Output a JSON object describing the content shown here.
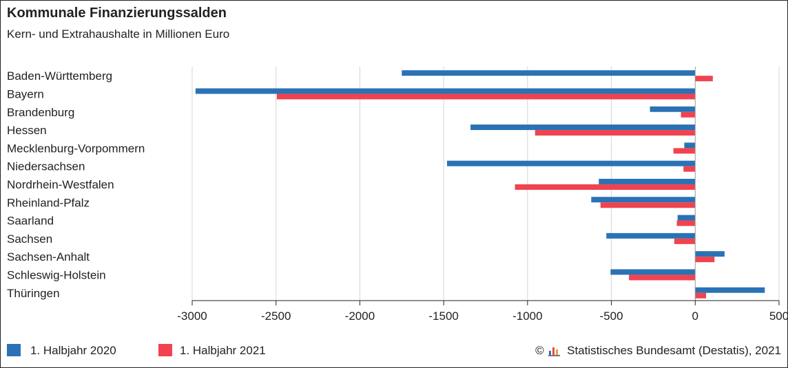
{
  "header": {
    "title": "Kommunale Finanzierungssalden",
    "subtitle": "Kern- und Extrahaushalte in Millionen Euro"
  },
  "legend": {
    "items": [
      {
        "label": "1. Halbjahr 2020",
        "color": "#2a72b5"
      },
      {
        "label": "1. Halbjahr 2021",
        "color": "#f0434f"
      }
    ]
  },
  "source": {
    "copyright": "©",
    "text": "Statistisches Bundesamt (Destatis), 2021",
    "logo_icon": "destatis-logo-icon"
  },
  "chart_data": {
    "type": "bar",
    "orientation": "horizontal",
    "title": "Kommunale Finanzierungssalden",
    "subtitle": "Kern- und Extrahaushalte in Millionen Euro",
    "categories": [
      "Baden-Württemberg",
      "Bayern",
      "Brandenburg",
      "Hessen",
      "Mecklenburg-Vorpommern",
      "Niedersachsen",
      "Nordrhein-Westfalen",
      "Rheinland-Pfalz",
      "Saarland",
      "Sachsen",
      "Sachsen-Anhalt",
      "Schleswig-Holstein",
      "Thüringen"
    ],
    "series": [
      {
        "name": "1. Halbjahr 2020",
        "color": "#2a72b5",
        "values": [
          -1750,
          -2980,
          -270,
          -1340,
          -65,
          -1480,
          -575,
          -620,
          -105,
          -530,
          175,
          -505,
          415
        ]
      },
      {
        "name": "1. Halbjahr 2021",
        "color": "#f0434f",
        "values": [
          105,
          -2495,
          -85,
          -955,
          -130,
          -70,
          -1075,
          -565,
          -110,
          -125,
          115,
          -395,
          65
        ]
      }
    ],
    "xlim": [
      -3000,
      500
    ],
    "xticks": [
      -3000,
      -2500,
      -2000,
      -1500,
      -1000,
      -500,
      0,
      500
    ],
    "xtick_labels": [
      "-3000",
      "-2500",
      "-2000",
      "-1500",
      "-1000",
      "-500",
      "0",
      "500"
    ],
    "grid": true,
    "legend_position": "bottom-left"
  }
}
